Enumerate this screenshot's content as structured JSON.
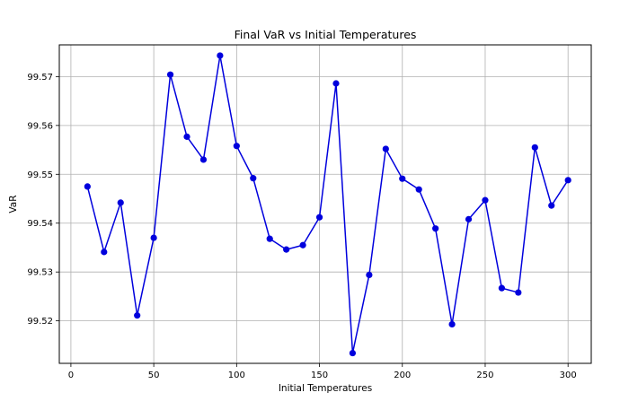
{
  "chart_data": {
    "type": "line",
    "title": "Final VaR vs Initial Temperatures",
    "xlabel": "Initial Temperatures",
    "ylabel": "VaR",
    "xlim": [
      -7,
      314
    ],
    "ylim": [
      99.5113,
      99.5765
    ],
    "xticks": [
      0,
      50,
      100,
      150,
      200,
      250,
      300
    ],
    "xtick_labels": [
      "0",
      "50",
      "100",
      "150",
      "200",
      "250",
      "300"
    ],
    "yticks": [
      99.52,
      99.53,
      99.54,
      99.55,
      99.56,
      99.57
    ],
    "ytick_labels": [
      "99.52",
      "99.53",
      "99.54",
      "99.55",
      "99.56",
      "99.57"
    ],
    "grid": true,
    "series": [
      {
        "color": "#0000dd",
        "marker": "circle",
        "x": [
          10,
          20,
          30,
          40,
          50,
          60,
          70,
          80,
          90,
          100,
          110,
          120,
          130,
          140,
          150,
          160,
          170,
          180,
          190,
          200,
          210,
          220,
          230,
          240,
          250,
          260,
          270,
          280,
          290,
          300
        ],
        "y": [
          99.5475,
          99.5341,
          99.5442,
          99.5211,
          99.537,
          99.5704,
          99.5577,
          99.553,
          99.5743,
          99.5558,
          99.5492,
          99.5368,
          99.5346,
          99.5355,
          99.5412,
          99.5686,
          99.5134,
          99.5294,
          99.5552,
          99.5491,
          99.5469,
          99.5389,
          99.5193,
          99.5408,
          99.5447,
          99.5267,
          99.5258,
          99.5555,
          99.5436,
          99.5488
        ]
      }
    ]
  }
}
